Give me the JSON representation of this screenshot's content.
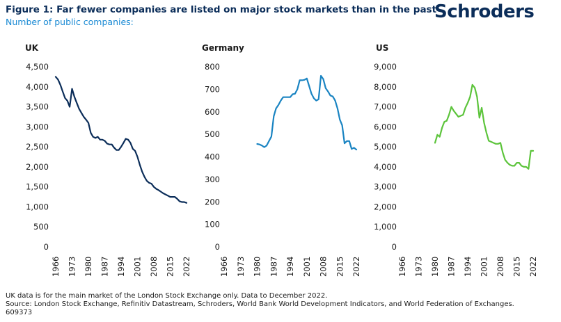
{
  "header": {
    "title": "Figure 1: Far fewer companies are listed on major stock markets than in the past",
    "subtitle": "Number of public companies:",
    "logo": "Schroders"
  },
  "footer": {
    "note": "UK data is for the main market of the London Stock Exchange only. Data to December 2022.",
    "source": "Source: London Stock Exchange, Refinitiv Datastream, Schroders, World Bank World Development Indicators, and World Federation of Exchanges.",
    "code": "609373"
  },
  "colors": {
    "uk": "#0b2d59",
    "germany": "#1a84c2",
    "us": "#5cc43b"
  },
  "chart_data": [
    {
      "type": "line",
      "title": "UK",
      "xlabel": "",
      "ylabel": "",
      "xlim": [
        1966,
        2022
      ],
      "ylim": [
        0,
        4500
      ],
      "y_ticks": [
        "4,500",
        "4,000",
        "3,500",
        "3,000",
        "2,500",
        "2,000",
        "1,500",
        "1,000",
        "500",
        "0"
      ],
      "y_tick_values": [
        4500,
        4000,
        3500,
        3000,
        2500,
        2000,
        1500,
        1000,
        500,
        0
      ],
      "x_ticks": [
        "1966",
        "1973",
        "1980",
        "1987",
        "1994",
        "2001",
        "2008",
        "2015",
        "2022"
      ],
      "series": [
        {
          "x": [
            1966,
            1967,
            1968,
            1969,
            1970,
            1971,
            1972,
            1973,
            1974,
            1975,
            1976,
            1977,
            1978,
            1979,
            1980,
            1981,
            1982,
            1983,
            1984,
            1985,
            1986,
            1987,
            1988,
            1989,
            1990,
            1991,
            1992,
            1993,
            1994,
            1995,
            1996,
            1997,
            1998,
            1999,
            2000,
            2001,
            2002,
            2003,
            2004,
            2005,
            2006,
            2007,
            2008,
            2009,
            2010,
            2011,
            2012,
            2013,
            2014,
            2015,
            2016,
            2017,
            2018,
            2019,
            2020,
            2021,
            2022
          ],
          "y": [
            4250,
            4180,
            4050,
            3880,
            3720,
            3650,
            3500,
            3950,
            3750,
            3600,
            3450,
            3350,
            3250,
            3180,
            3100,
            2850,
            2750,
            2720,
            2750,
            2680,
            2680,
            2650,
            2580,
            2560,
            2560,
            2480,
            2420,
            2420,
            2500,
            2600,
            2700,
            2680,
            2600,
            2450,
            2400,
            2250,
            2050,
            1880,
            1750,
            1650,
            1600,
            1580,
            1500,
            1450,
            1420,
            1380,
            1340,
            1310,
            1280,
            1250,
            1250,
            1250,
            1200,
            1140,
            1120,
            1120,
            1100
          ]
        }
      ]
    },
    {
      "type": "line",
      "title": "Germany",
      "xlabel": "",
      "ylabel": "",
      "xlim": [
        1966,
        2022
      ],
      "ylim": [
        0,
        800
      ],
      "y_ticks": [
        "800",
        "700",
        "600",
        "500",
        "400",
        "300",
        "200",
        "100",
        "0"
      ],
      "y_tick_values": [
        800,
        700,
        600,
        500,
        400,
        300,
        200,
        100,
        0
      ],
      "x_ticks": [
        "1966",
        "1973",
        "1980",
        "1987",
        "1994",
        "2001",
        "2008",
        "2015",
        "2022"
      ],
      "series": [
        {
          "x": [
            1980,
            1981,
            1982,
            1983,
            1984,
            1985,
            1986,
            1987,
            1988,
            1989,
            1990,
            1991,
            1992,
            1993,
            1994,
            1995,
            1996,
            1997,
            1998,
            1999,
            2000,
            2001,
            2002,
            2003,
            2004,
            2005,
            2006,
            2007,
            2008,
            2009,
            2010,
            2011,
            2012,
            2013,
            2014,
            2015,
            2016,
            2017,
            2018,
            2019,
            2020,
            2021,
            2022
          ],
          "y": [
            457,
            455,
            450,
            443,
            450,
            470,
            490,
            580,
            615,
            630,
            650,
            665,
            665,
            665,
            665,
            678,
            680,
            700,
            740,
            740,
            742,
            748,
            715,
            680,
            660,
            650,
            655,
            760,
            745,
            705,
            690,
            672,
            668,
            650,
            615,
            565,
            540,
            460,
            470,
            470,
            435,
            440,
            432
          ]
        }
      ]
    },
    {
      "type": "line",
      "title": "US",
      "xlabel": "",
      "ylabel": "",
      "xlim": [
        1966,
        2022
      ],
      "ylim": [
        0,
        9000
      ],
      "y_ticks": [
        "9,000",
        "8,000",
        "7,000",
        "6,000",
        "5,000",
        "4,000",
        "3,000",
        "2,000",
        "1,000",
        "0"
      ],
      "y_tick_values": [
        9000,
        8000,
        7000,
        6000,
        5000,
        4000,
        3000,
        2000,
        1000,
        0
      ],
      "x_ticks": [
        "1966",
        "1973",
        "1980",
        "1987",
        "1994",
        "2001",
        "2008",
        "2015",
        "2022"
      ],
      "series": [
        {
          "x": [
            1980,
            1981,
            1982,
            1983,
            1984,
            1985,
            1986,
            1987,
            1988,
            1989,
            1990,
            1991,
            1992,
            1993,
            1994,
            1995,
            1996,
            1997,
            1998,
            1999,
            2000,
            2001,
            2002,
            2003,
            2004,
            2005,
            2006,
            2007,
            2008,
            2009,
            2010,
            2011,
            2012,
            2013,
            2014,
            2015,
            2016,
            2017,
            2018,
            2019,
            2020,
            2021,
            2022
          ],
          "y": [
            5200,
            5600,
            5500,
            5950,
            6250,
            6300,
            6600,
            7000,
            6800,
            6650,
            6500,
            6550,
            6600,
            6950,
            7200,
            7500,
            8100,
            7950,
            7500,
            6450,
            6950,
            6200,
            5700,
            5300,
            5250,
            5200,
            5150,
            5150,
            5200,
            4700,
            4350,
            4200,
            4100,
            4050,
            4050,
            4200,
            4200,
            4050,
            4000,
            4000,
            3900,
            4800,
            4800
          ]
        }
      ]
    }
  ]
}
